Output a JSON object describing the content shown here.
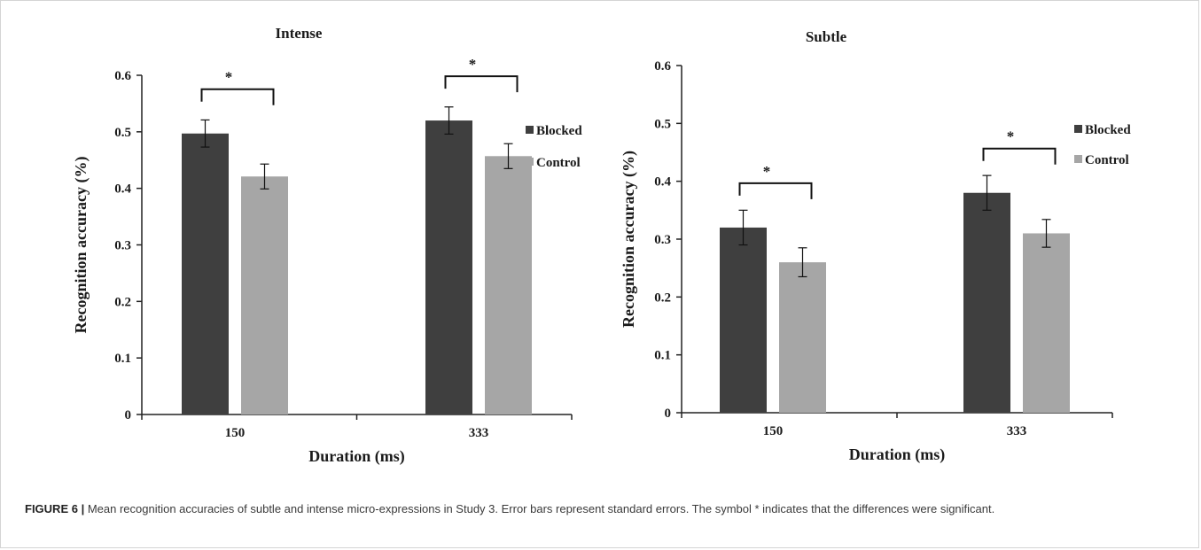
{
  "caption": {
    "label": "FIGURE 6 |",
    "text": " Mean recognition accuracies of subtle and intense micro-expressions in Study 3. Error bars represent standard errors. The symbol * indicates that the differences were significant."
  },
  "colors": {
    "blocked": "#3f3f3f",
    "control": "#a6a6a6"
  },
  "chart_data": [
    {
      "type": "bar",
      "title": "Intense",
      "xlabel": "Duration (ms)",
      "ylabel": "Recognition accuracy (%)",
      "categories": [
        "150",
        "333"
      ],
      "ylim": [
        0,
        0.6
      ],
      "yticks": [
        "0",
        "0.1",
        "0.2",
        "0.3",
        "0.4",
        "0.5",
        "0.6"
      ],
      "series": [
        {
          "name": "Blocked",
          "values": [
            0.497,
            0.52
          ],
          "errors": [
            0.024,
            0.024
          ]
        },
        {
          "name": "Control",
          "values": [
            0.421,
            0.457
          ],
          "errors": [
            0.022,
            0.022
          ]
        }
      ],
      "significance_marker": "*",
      "legend": "right",
      "grid": false
    },
    {
      "type": "bar",
      "title": "Subtle",
      "xlabel": "Duration (ms)",
      "ylabel": "Recognition accuracy (%)",
      "categories": [
        "150",
        "333"
      ],
      "ylim": [
        0,
        0.6
      ],
      "yticks": [
        "0",
        "0.1",
        "0.2",
        "0.3",
        "0.4",
        "0.5",
        "0.6"
      ],
      "series": [
        {
          "name": "Blocked",
          "values": [
            0.32,
            0.38
          ],
          "errors": [
            0.03,
            0.03
          ]
        },
        {
          "name": "Control",
          "values": [
            0.26,
            0.31
          ],
          "errors": [
            0.025,
            0.024
          ]
        }
      ],
      "significance_marker": "*",
      "legend": "right",
      "grid": false
    }
  ]
}
